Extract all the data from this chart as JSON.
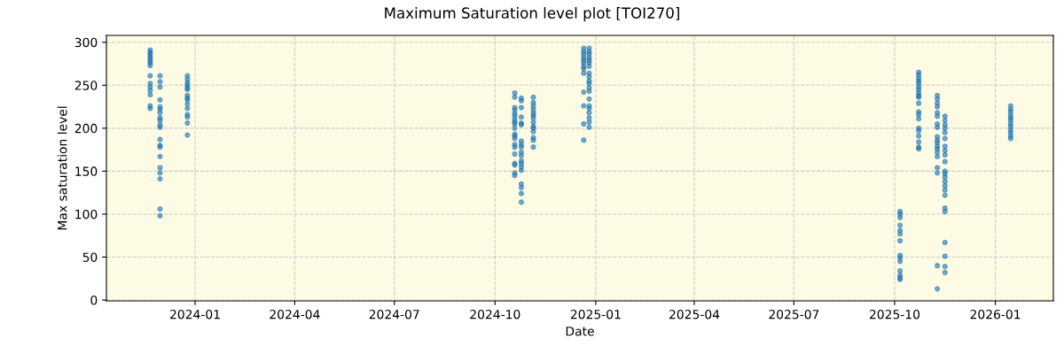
{
  "chart_data": {
    "type": "scatter",
    "title": "Maximum Saturation level plot [TOI270]",
    "xlabel": "Date",
    "ylabel": "Max saturation level",
    "xlim": [
      "2023-10-12",
      "2026-02-23"
    ],
    "ylim": [
      -1,
      308
    ],
    "xticks": [
      {
        "value": "2024-01-01",
        "label": "2024-01"
      },
      {
        "value": "2024-04-01",
        "label": "2024-04"
      },
      {
        "value": "2024-07-01",
        "label": "2024-07"
      },
      {
        "value": "2024-10-01",
        "label": "2024-10"
      },
      {
        "value": "2025-01-01",
        "label": "2025-01"
      },
      {
        "value": "2025-04-01",
        "label": "2025-04"
      },
      {
        "value": "2025-07-01",
        "label": "2025-07"
      },
      {
        "value": "2025-10-01",
        "label": "2025-10"
      },
      {
        "value": "2026-01-01",
        "label": "2026-01"
      }
    ],
    "yticks": [
      0,
      50,
      100,
      150,
      200,
      250,
      300
    ],
    "grid": true,
    "marker": "circle",
    "series": [
      {
        "color": "#1f77b4",
        "x": [
          "2023-11-21",
          "2023-11-21",
          "2023-11-21",
          "2023-11-21",
          "2023-11-21",
          "2023-11-21",
          "2023-11-21",
          "2023-11-21",
          "2023-11-21",
          "2023-11-21",
          "2023-11-21",
          "2023-11-21",
          "2023-11-21",
          "2023-11-21",
          "2023-11-21",
          "2023-11-30",
          "2023-11-30",
          "2023-11-30",
          "2023-11-30",
          "2023-11-30",
          "2023-11-30",
          "2023-11-30",
          "2023-11-30",
          "2023-11-30",
          "2023-11-30",
          "2023-11-30",
          "2023-11-30",
          "2023-11-30",
          "2023-11-30",
          "2023-11-30",
          "2023-11-30",
          "2023-11-30",
          "2023-11-30",
          "2023-11-30",
          "2023-11-30",
          "2023-12-25",
          "2023-12-25",
          "2023-12-25",
          "2023-12-25",
          "2023-12-25",
          "2023-12-25",
          "2023-12-25",
          "2023-12-25",
          "2023-12-25",
          "2023-12-25",
          "2023-12-25",
          "2023-12-25",
          "2023-12-25",
          "2023-12-25",
          "2023-12-25",
          "2024-10-19",
          "2024-10-19",
          "2024-10-19",
          "2024-10-19",
          "2024-10-19",
          "2024-10-19",
          "2024-10-19",
          "2024-10-19",
          "2024-10-19",
          "2024-10-19",
          "2024-10-19",
          "2024-10-19",
          "2024-10-19",
          "2024-10-19",
          "2024-10-19",
          "2024-10-19",
          "2024-10-19",
          "2024-10-19",
          "2024-10-19",
          "2024-10-19",
          "2024-10-25",
          "2024-10-25",
          "2024-10-25",
          "2024-10-25",
          "2024-10-25",
          "2024-10-25",
          "2024-10-25",
          "2024-10-25",
          "2024-10-25",
          "2024-10-25",
          "2024-10-25",
          "2024-10-25",
          "2024-10-25",
          "2024-10-25",
          "2024-10-25",
          "2024-10-25",
          "2024-10-25",
          "2024-10-25",
          "2024-10-25",
          "2024-11-05",
          "2024-11-05",
          "2024-11-05",
          "2024-11-05",
          "2024-11-05",
          "2024-11-05",
          "2024-11-05",
          "2024-11-05",
          "2024-11-05",
          "2024-11-05",
          "2024-11-05",
          "2024-11-05",
          "2024-11-05",
          "2024-11-05",
          "2024-12-21",
          "2024-12-21",
          "2024-12-21",
          "2024-12-21",
          "2024-12-21",
          "2024-12-21",
          "2024-12-21",
          "2024-12-21",
          "2024-12-21",
          "2024-12-21",
          "2024-12-21",
          "2024-12-21",
          "2024-12-21",
          "2024-12-26",
          "2024-12-26",
          "2024-12-26",
          "2024-12-26",
          "2024-12-26",
          "2024-12-26",
          "2024-12-26",
          "2024-12-26",
          "2024-12-26",
          "2024-12-26",
          "2024-12-26",
          "2024-12-26",
          "2024-12-26",
          "2024-12-26",
          "2024-12-26",
          "2024-12-26",
          "2024-12-26",
          "2024-12-26",
          "2024-12-26",
          "2024-12-26",
          "2025-10-06",
          "2025-10-06",
          "2025-10-06",
          "2025-10-06",
          "2025-10-06",
          "2025-10-06",
          "2025-10-06",
          "2025-10-06",
          "2025-10-06",
          "2025-10-06",
          "2025-10-06",
          "2025-10-06",
          "2025-10-06",
          "2025-10-06",
          "2025-10-23",
          "2025-10-23",
          "2025-10-23",
          "2025-10-23",
          "2025-10-23",
          "2025-10-23",
          "2025-10-23",
          "2025-10-23",
          "2025-10-23",
          "2025-10-23",
          "2025-10-23",
          "2025-10-23",
          "2025-10-23",
          "2025-10-23",
          "2025-10-23",
          "2025-10-23",
          "2025-10-23",
          "2025-10-23",
          "2025-10-23",
          "2025-10-23",
          "2025-11-09",
          "2025-11-09",
          "2025-11-09",
          "2025-11-09",
          "2025-11-09",
          "2025-11-09",
          "2025-11-09",
          "2025-11-09",
          "2025-11-09",
          "2025-11-09",
          "2025-11-09",
          "2025-11-09",
          "2025-11-09",
          "2025-11-09",
          "2025-11-09",
          "2025-11-09",
          "2025-11-09",
          "2025-11-09",
          "2025-11-09",
          "2025-11-16",
          "2025-11-16",
          "2025-11-16",
          "2025-11-16",
          "2025-11-16",
          "2025-11-16",
          "2025-11-16",
          "2025-11-16",
          "2025-11-16",
          "2025-11-16",
          "2025-11-16",
          "2025-11-16",
          "2025-11-16",
          "2025-11-16",
          "2025-11-16",
          "2025-11-16",
          "2025-11-16",
          "2025-11-16",
          "2025-11-16",
          "2025-11-16",
          "2025-11-16",
          "2025-11-16",
          "2025-11-16",
          "2026-01-15",
          "2026-01-15",
          "2026-01-15",
          "2026-01-15",
          "2026-01-15",
          "2026-01-15",
          "2026-01-15",
          "2026-01-15",
          "2026-01-15",
          "2026-01-15",
          "2026-01-15",
          "2026-01-15"
        ],
        "values": [
          291,
          288,
          286,
          283,
          281,
          278,
          276,
          273,
          261,
          252,
          248,
          244,
          239,
          226,
          223,
          261,
          254,
          248,
          233,
          225,
          222,
          218,
          212,
          209,
          204,
          201,
          187,
          180,
          178,
          167,
          154,
          148,
          141,
          106,
          98,
          261,
          257,
          253,
          250,
          247,
          245,
          238,
          235,
          233,
          228,
          223,
          216,
          213,
          206,
          192,
          241,
          236,
          224,
          221,
          217,
          214,
          210,
          207,
          205,
          200,
          193,
          191,
          188,
          181,
          178,
          170,
          159,
          157,
          148,
          145,
          235,
          232,
          224,
          213,
          206,
          204,
          185,
          181,
          178,
          172,
          168,
          162,
          159,
          155,
          151,
          135,
          131,
          124,
          114,
          236,
          230,
          226,
          222,
          218,
          215,
          212,
          207,
          202,
          200,
          196,
          189,
          186,
          178,
          293,
          289,
          286,
          282,
          279,
          276,
          272,
          269,
          264,
          242,
          226,
          205,
          186,
          293,
          289,
          286,
          282,
          279,
          276,
          272,
          264,
          260,
          255,
          252,
          247,
          243,
          234,
          226,
          223,
          218,
          212,
          207,
          201,
          103,
          100,
          96,
          87,
          81,
          77,
          69,
          52,
          49,
          45,
          34,
          29,
          26,
          24,
          265,
          262,
          258,
          255,
          252,
          248,
          245,
          241,
          238,
          236,
          229,
          219,
          216,
          211,
          200,
          197,
          191,
          184,
          178,
          176,
          238,
          234,
          229,
          225,
          218,
          214,
          205,
          201,
          190,
          186,
          183,
          179,
          176,
          172,
          167,
          154,
          148,
          40,
          13,
          214,
          209,
          204,
          200,
          195,
          188,
          179,
          174,
          169,
          161,
          150,
          147,
          143,
          138,
          133,
          128,
          122,
          107,
          103,
          67,
          51,
          39,
          32,
          226,
          222,
          219,
          215,
          212,
          209,
          205,
          202,
          198,
          195,
          191,
          188
        ]
      }
    ]
  }
}
